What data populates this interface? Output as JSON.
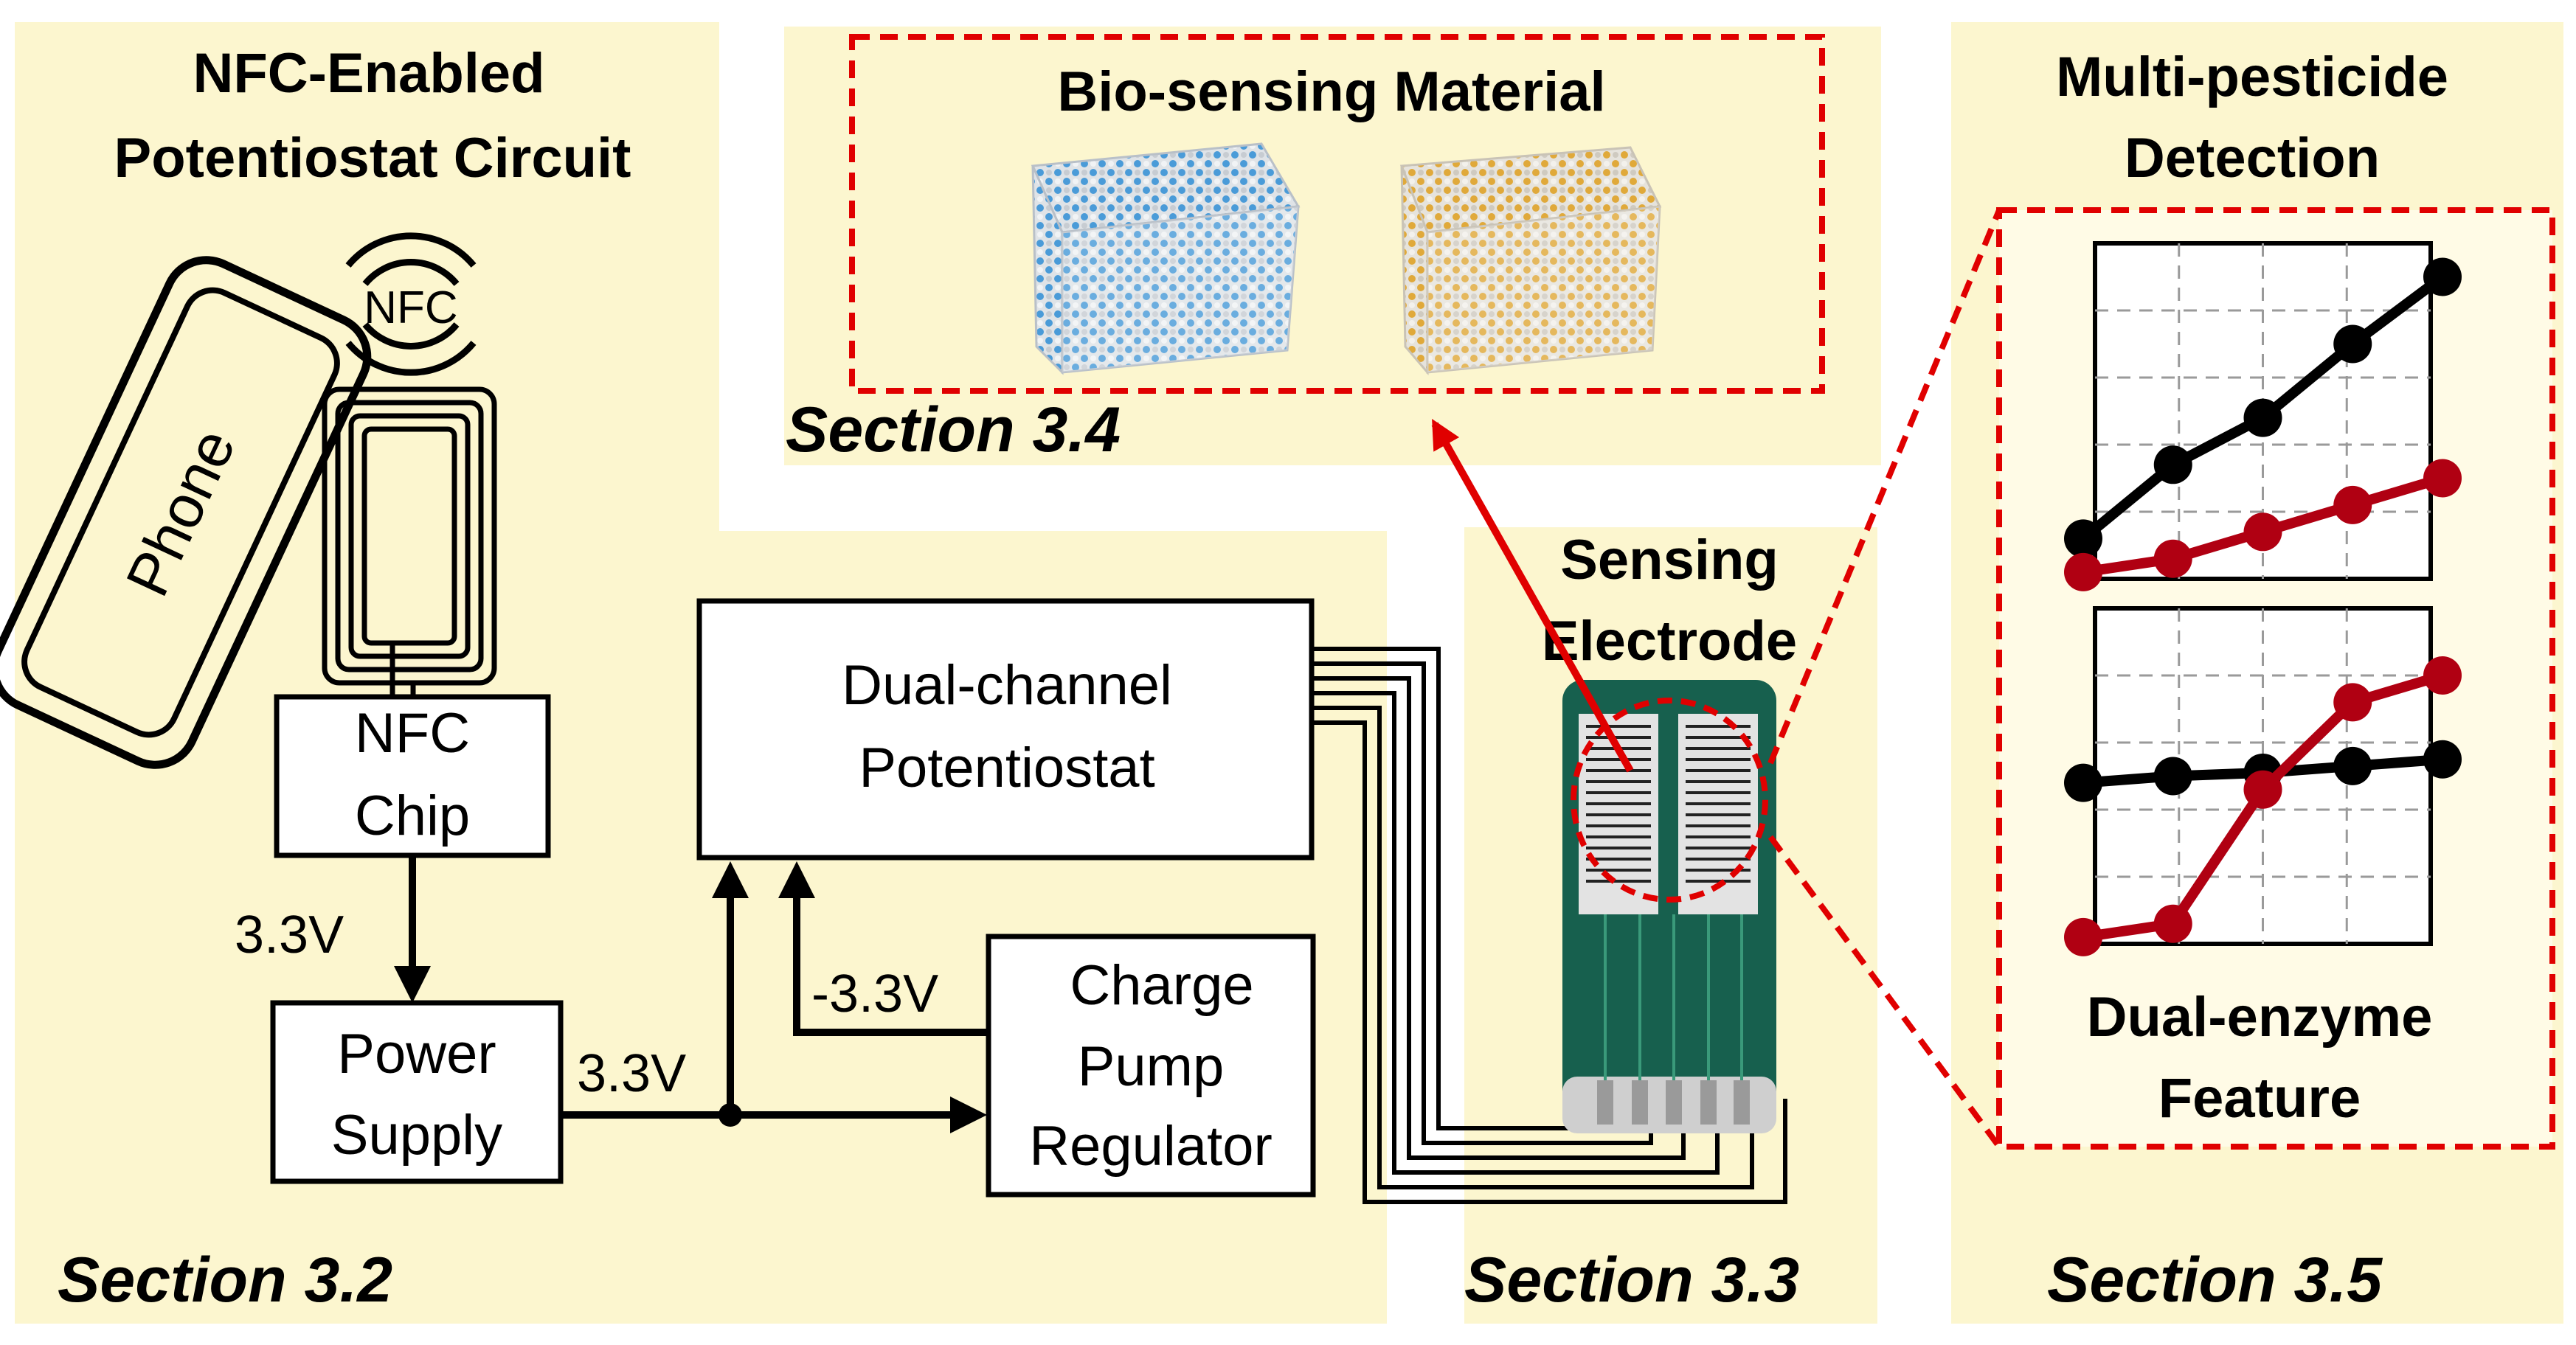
{
  "panels": {
    "circuit": {
      "title_lines": [
        "NFC-Enabled",
        "Potentiostat Circuit"
      ],
      "section": "Section 3.2"
    },
    "material": {
      "title": "Bio-sensing Material",
      "section": "Section 3.4"
    },
    "electrode": {
      "title_lines": [
        "Sensing",
        "Electrode"
      ],
      "section": "Section 3.3"
    },
    "detection": {
      "title_lines": [
        "Multi-pesticide",
        "Detection"
      ],
      "feature_lines": [
        "Dual-enzyme",
        "Feature"
      ],
      "section": "Section 3.5"
    }
  },
  "labels": {
    "phone": "Phone",
    "nfc_logo": "NFC",
    "nfc_chip_lines": [
      "NFC",
      "Chip"
    ],
    "power_supply_lines": [
      "Power",
      "Supply"
    ],
    "potentiostat_lines": [
      "Dual-channel",
      "Potentiostat"
    ],
    "charge_pump_lines": [
      "Charge",
      "Pump",
      "Regulator"
    ],
    "v_chip_to_supply": "3.3V",
    "v_supply_out": "3.3V",
    "v_negative": "-3.3V"
  },
  "colors": {
    "panel_bg": "#fcf6cf",
    "accent_red": "#e00000",
    "series_red": "#b00012",
    "series_black": "#000000",
    "electrode_green": "#17604e",
    "cube_blue": "#4a9bd8",
    "cube_gold": "#e0a93a"
  },
  "chart_data": [
    {
      "type": "line",
      "series": [
        {
          "values": [
            0.12,
            0.34,
            0.48,
            0.7,
            0.9
          ]
        },
        {
          "values": [
            0.02,
            0.06,
            0.14,
            0.22,
            0.3
          ]
        }
      ],
      "ylim": [
        0,
        1
      ],
      "grid": true
    },
    {
      "type": "line",
      "series": [
        {
          "values": [
            0.48,
            0.5,
            0.51,
            0.53,
            0.55
          ]
        },
        {
          "values": [
            0.02,
            0.06,
            0.46,
            0.72,
            0.8
          ]
        }
      ],
      "ylim": [
        0,
        1
      ],
      "grid": true
    }
  ]
}
